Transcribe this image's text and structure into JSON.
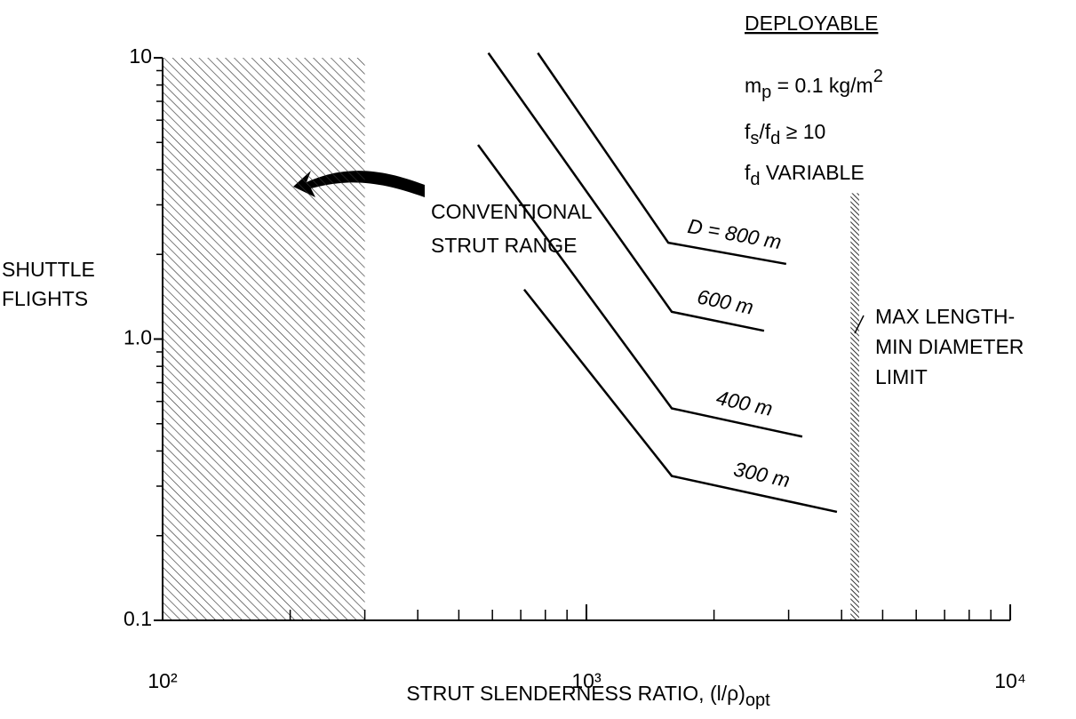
{
  "chart_data": {
    "type": "line",
    "ylabel": [
      "SHUTTLE",
      "FLIGHTS"
    ],
    "xlabel": [
      {
        "text": "STRUT SLENDERNESS RATIO, (l/ρ)"
      },
      {
        "text": "opt",
        "shift": "sub"
      }
    ],
    "xscale": "log",
    "yscale": "log",
    "xlim": [
      100,
      10000
    ],
    "ylim": [
      0.1,
      10
    ],
    "xticks": [
      {
        "value": 100,
        "label": "10²"
      },
      {
        "value": 1000,
        "label": "10³"
      },
      {
        "value": 10000,
        "label": "10⁴"
      }
    ],
    "yticks": [
      0.1,
      {
        "value": 1,
        "label": "1.0"
      },
      10
    ],
    "minor_ticks": true,
    "series": [
      {
        "name": "D = 800 m",
        "color": "#000000",
        "x": [
          768,
          1560,
          2960
        ],
        "values": [
          10.4,
          2.2,
          1.85
        ]
      },
      {
        "name": "600 m",
        "color": "#000000",
        "x": [
          587,
          1590,
          2625
        ],
        "values": [
          10.4,
          1.25,
          1.07
        ]
      },
      {
        "name": "400 m",
        "color": "#000000",
        "x": [
          555,
          1590,
          3230
        ],
        "values": [
          4.9,
          0.567,
          0.45
        ]
      },
      {
        "name": "300 m",
        "color": "#000000",
        "x": [
          713,
          1590,
          3900
        ],
        "values": [
          1.5,
          0.326,
          0.243
        ]
      }
    ],
    "regions": [
      {
        "x": [
          100,
          300
        ],
        "y": [
          0.1,
          10
        ],
        "hatch": "wide"
      },
      {
        "x": [
          4200,
          4400
        ],
        "y": [
          0.1,
          3.3
        ],
        "hatch": "dense"
      }
    ],
    "annotations": [
      {
        "lines": [
          "CONVENTIONAL",
          "STRUT RANGE"
        ]
      },
      {
        "lines": [
          "MAX LENGTH-",
          "MIN DIAMETER",
          "LIMIT"
        ]
      }
    ],
    "notes": [
      [
        {
          "text": "DEPLOYABLE",
          "underline": true
        }
      ],
      [
        {
          "text": "m"
        },
        {
          "text": "p",
          "shift": "sub"
        },
        {
          "text": " = 0.1 kg/m"
        },
        {
          "text": "2",
          "shift": "super"
        }
      ],
      [
        {
          "text": "f"
        },
        {
          "text": "s",
          "shift": "sub"
        },
        {
          "text": "/f"
        },
        {
          "text": "d",
          "shift": "sub"
        },
        {
          "text": " ≥ 10"
        }
      ],
      [
        {
          "text": "f"
        },
        {
          "text": "d",
          "shift": "sub"
        },
        {
          "text": " VARIABLE"
        }
      ]
    ]
  }
}
